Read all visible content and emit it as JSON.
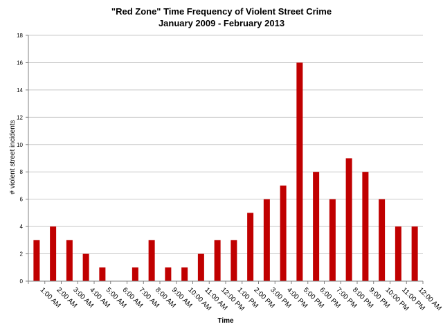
{
  "chart_data": {
    "type": "bar",
    "title": "\"Red Zone\" Time Frequency of Violent Street Crime",
    "subtitle": "January 2009 - February 2013",
    "xlabel": "Time",
    "ylabel": "# violent street incidents",
    "ylim": [
      0,
      18
    ],
    "yticks": [
      0,
      2,
      4,
      6,
      8,
      10,
      12,
      14,
      16,
      18
    ],
    "grid": true,
    "bar_color": "#c00000",
    "categories": [
      "1:00 AM",
      "2:00 AM",
      "3:00 AM",
      "4:00 AM",
      "5:00 AM",
      "6:00 AM",
      "7:00 AM",
      "8:00 AM",
      "9:00 AM",
      "10:00 AM",
      "11:00 AM",
      "12:00 PM",
      "1:00 PM",
      "2:00 PM",
      "3:00 PM",
      "4:00 PM",
      "5:00 PM",
      "6:00 PM",
      "7:00 PM",
      "8:00 PM",
      "9:00 PM",
      "10:00 PM",
      "11:00 PM",
      "12:00 AM"
    ],
    "values": [
      3,
      4,
      3,
      2,
      1,
      0,
      1,
      3,
      1,
      1,
      2,
      3,
      3,
      5,
      6,
      7,
      16,
      8,
      6,
      9,
      8,
      6,
      4,
      4
    ]
  }
}
